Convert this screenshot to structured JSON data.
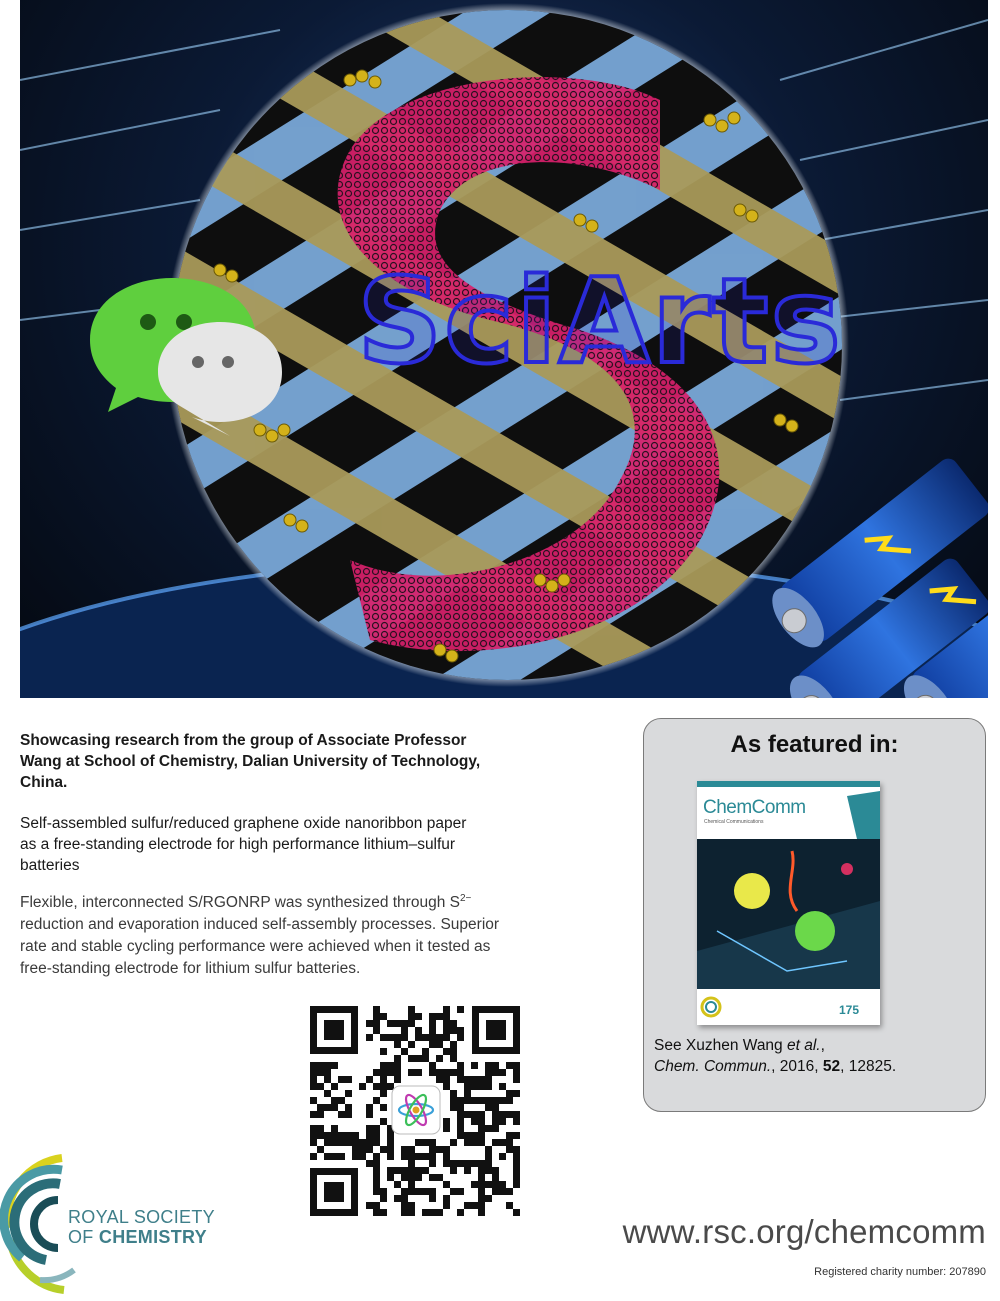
{
  "artwork": {
    "overlay_text": "SciArts"
  },
  "showcase": "Showcasing research from the group of Associate Professor Wang at School of Chemistry, Dalian University of Technology, China.",
  "article_title": "Self-assembled sulfur/reduced graphene oxide nanoribbon paper as a free-standing electrode for high performance lithium–sulfur batteries",
  "abstract": {
    "before_sup": "Flexible, interconnected S/RGONRP was synthesized through S",
    "sup": "2−",
    "after_sup": " reduction and evaporation induced self-assembly processes. Superior rate and stable cycling performance were achieved when it tested as free-standing electrode for lithium sulfur batteries."
  },
  "featured": {
    "heading": "As featured in:",
    "journal_cover_title": "ChemComm",
    "journal_cover_subtitle": "Chemical Communications",
    "journal_cover_badge": "175",
    "citation_prefix": "See Xuzhen Wang ",
    "citation_etal": "et al.",
    "citation_comma": ",",
    "citation_journal": "Chem. Commun.",
    "citation_year": ", 2016, ",
    "citation_volume": "52",
    "citation_pages": ", 12825."
  },
  "logo": {
    "line1": "ROYAL SOCIETY",
    "line2_of": "OF ",
    "line2_bold": "CHEMISTRY"
  },
  "website": "www.rsc.org/chemcomm",
  "charity": "Registered charity number: 207890",
  "colors": {
    "teal": "#3f7f8a",
    "sciarts_blue": "#2a2ad8",
    "box_grey": "#d9dadc"
  },
  "icons": [
    "chat-bubble-icon",
    "battery-icon",
    "qr-code",
    "rsc-logo"
  ]
}
